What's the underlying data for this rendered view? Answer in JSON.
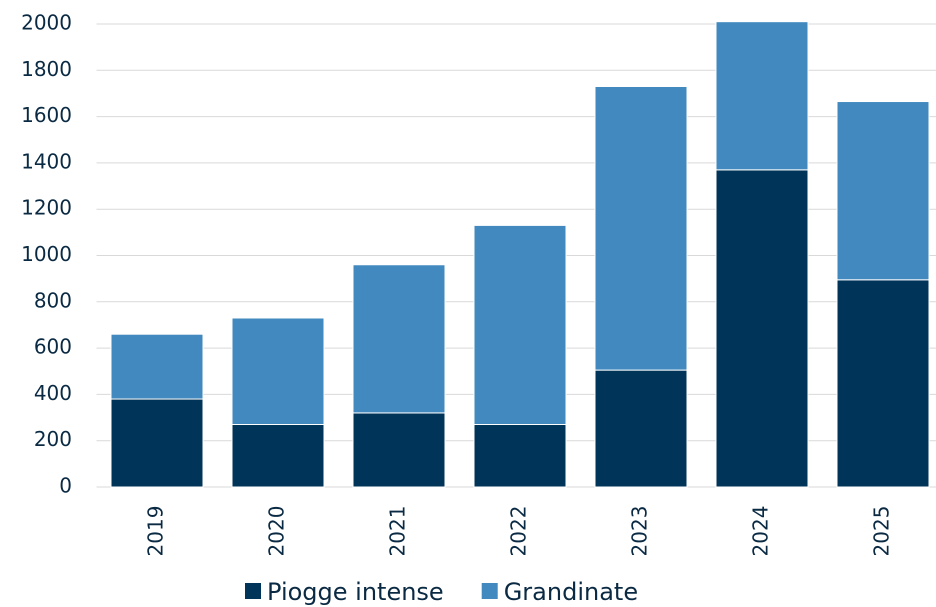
{
  "chart_data": {
    "type": "stacked_bar",
    "categories": [
      "2019",
      "2020",
      "2021",
      "2022",
      "2023",
      "2024",
      "2025"
    ],
    "series": [
      {
        "name": "Piogge intense",
        "color": "#003459",
        "values": [
          380,
          270,
          320,
          270,
          505,
          1370,
          895
        ]
      },
      {
        "name": "Grandinate",
        "color": "#4189be",
        "values": [
          280,
          460,
          640,
          860,
          1225,
          640,
          770
        ]
      }
    ],
    "ylim": [
      0,
      2000
    ],
    "yticks": [
      0,
      200,
      400,
      600,
      800,
      1000,
      1200,
      1400,
      1600,
      1800,
      2000
    ],
    "grid": true,
    "legend": "bottom"
  }
}
